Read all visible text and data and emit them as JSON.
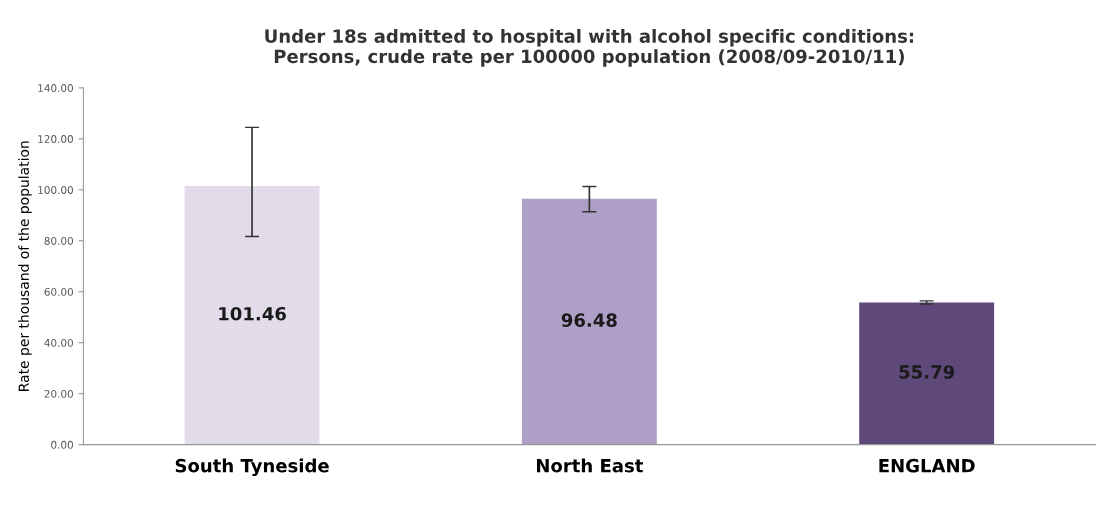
{
  "chart_data": {
    "type": "bar",
    "title": "Under 18s admitted to hospital with alcohol specific conditions:\nPersons, crude rate per 100000 population (2008/09-2010/11)",
    "ylabel": "Rate per thousand of the population",
    "categories": [
      "South Tyneside",
      "North East",
      "ENGLAND"
    ],
    "values": [
      101.46,
      96.48,
      55.79
    ],
    "colors": [
      "#e2dcea",
      "#ae9fc6",
      "#5f497a"
    ],
    "errors": [
      [
        81.7,
        124.5
      ],
      [
        91.4,
        101.3
      ],
      [
        55.2,
        56.4
      ]
    ],
    "data_labels": true,
    "ylim": [
      0,
      140
    ],
    "yticks": [
      {
        "value": 0,
        "label": "0.00"
      },
      {
        "value": 20,
        "label": "20.00"
      },
      {
        "value": 40,
        "label": "40.00"
      },
      {
        "value": 60,
        "label": "60.00"
      },
      {
        "value": 80,
        "label": "80.00"
      },
      {
        "value": 100,
        "label": "100.00"
      },
      {
        "value": 120,
        "label": "120.00"
      },
      {
        "value": 140,
        "label": "140.00"
      }
    ],
    "grid": false
  }
}
